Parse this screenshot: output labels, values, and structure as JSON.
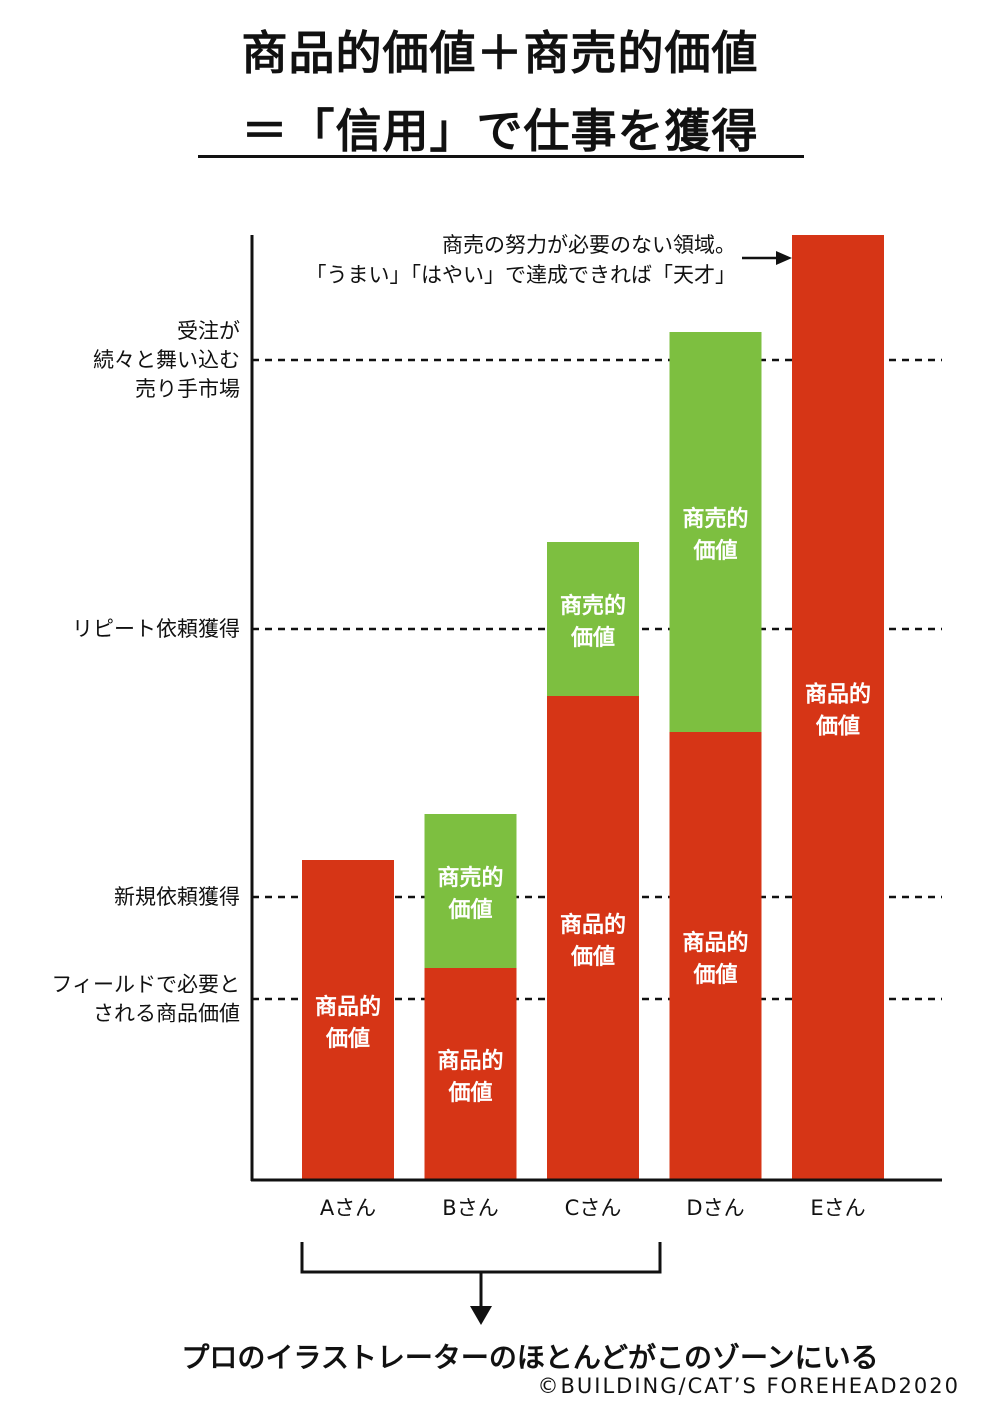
{
  "title": {
    "line1": "商品的価値＋商売的価値",
    "line2": "＝「信用」で仕事を獲得"
  },
  "chart_data": {
    "type": "bar",
    "stacked": true,
    "categories": [
      "Aさん",
      "Bさん",
      "Cさん",
      "Dさん",
      "Eさん"
    ],
    "series": [
      {
        "name": "商品的価値",
        "values": [
          320,
          212,
          484,
          448,
          945
        ],
        "color": "#d63516"
      },
      {
        "name": "商売的価値",
        "values": [
          0,
          154,
          154,
          400,
          0
        ],
        "color": "#7dbf40"
      }
    ],
    "ylim": [
      0,
      945
    ],
    "levels": [
      {
        "lines": [
          "受注が",
          "続々と舞い込む",
          "売り手市場"
        ],
        "value": 820
      },
      {
        "lines": [
          "リピート依頼獲得"
        ],
        "value": 551
      },
      {
        "lines": [
          "新規依頼獲得"
        ],
        "value": 283
      },
      {
        "lines": [
          "フィールドで必要と",
          "される商品価値"
        ],
        "value": 181
      }
    ],
    "annotation": {
      "lines": [
        "商売の努力が必要のない領域。",
        "「うまい」「はやい」で達成できれば「天才」"
      ]
    },
    "grid": false,
    "legend": "none"
  },
  "zone": {
    "caption": "プロのイラストレーターのほとんどがこのゾーンにいる"
  },
  "copyright": "©BUILDING/CAT’S FOREHEAD2020"
}
